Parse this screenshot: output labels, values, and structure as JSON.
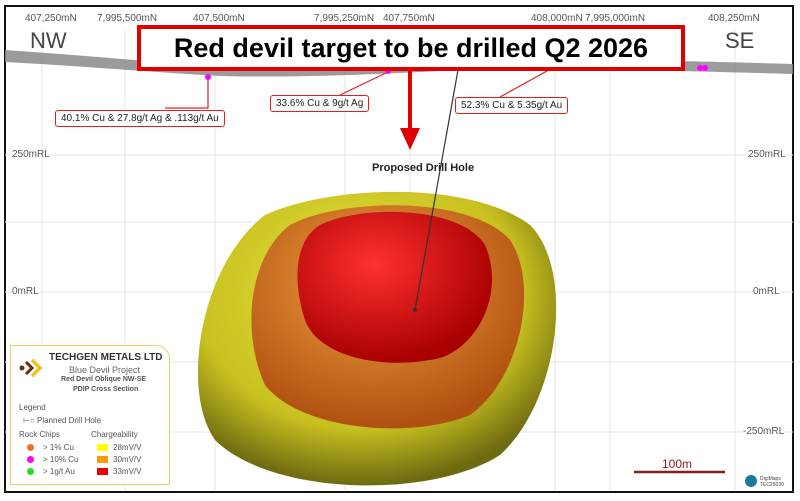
{
  "title": "Red devil target to be drilled Q2 2026",
  "directions": {
    "left": "NW",
    "right": "SE"
  },
  "top_ticks": [
    "407,250mN",
    "7,995,500mN",
    "407,500mN",
    "7,995,250mN",
    "407,750mN",
    "408,000mN",
    "7,995,000mN",
    "408,250mN"
  ],
  "rl_labels": [
    "250mRL",
    "0mRL",
    "-250mRL"
  ],
  "annotations": [
    "40.1% Cu & 27.8g/t Ag & .113g/t Au",
    "33.6% Cu & 9g/t Ag",
    "52.3% Cu & 5.35g/t Au"
  ],
  "drill_label": "Proposed Drill Hole",
  "scale_label": "100m",
  "legend": {
    "company": "TECHGEN METALS LTD",
    "project": "Blue Devil Project",
    "section1": "Red Devil Oblique NW-SE",
    "section2": "PDIP Cross Section",
    "heading": "Legend",
    "drill_hole": "Planned Drill Hole",
    "rock_heading": "Rock Chips",
    "charge_heading": "Chargeability",
    "rock": [
      {
        "label": "> 1% Cu",
        "color": "#f07020"
      },
      {
        "label": "> 10% Cu",
        "color": "#ff00ff"
      },
      {
        "label": "> 1g/t Au",
        "color": "#22dd22"
      }
    ],
    "charge": [
      {
        "label": "28mV/V",
        "color": "#ffff00"
      },
      {
        "label": "30mV/V",
        "color": "#ff9900"
      },
      {
        "label": "33mV/V",
        "color": "#ee0000"
      }
    ]
  },
  "logo_text": "DigiMaps TEC25030",
  "colors": {
    "accent": "#e00000"
  }
}
